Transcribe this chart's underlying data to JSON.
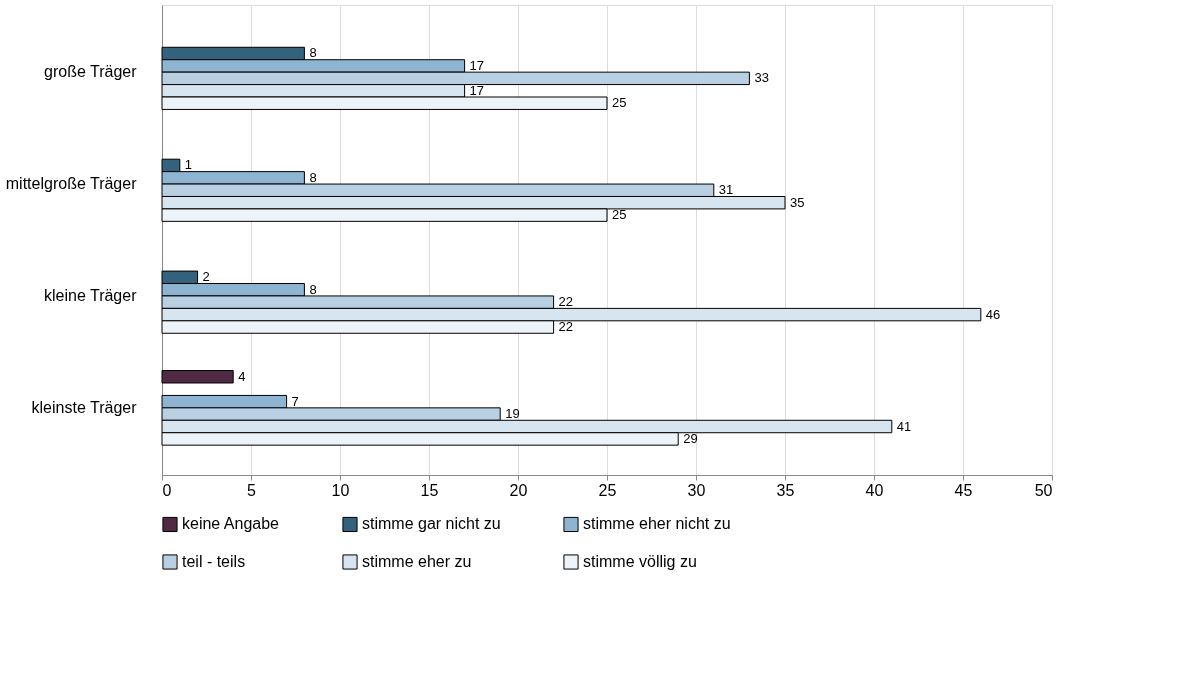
{
  "chart_data": {
    "type": "bar",
    "orientation": "horizontal",
    "categories": [
      "große Träger",
      "mittelgroße Träger",
      "kleine Träger",
      "kleinste Träger"
    ],
    "series": [
      {
        "name": "keine Angabe",
        "color": "#4f2a42",
        "values": [
          null,
          null,
          null,
          4
        ]
      },
      {
        "name": "stimme gar nicht zu",
        "color": "#34617c",
        "values": [
          8,
          1,
          2,
          null
        ]
      },
      {
        "name": "stimme eher nicht zu",
        "color": "#8db4d0",
        "values": [
          17,
          8,
          8,
          7
        ]
      },
      {
        "name": "teil - teils",
        "color": "#b8d0e2",
        "values": [
          33,
          31,
          22,
          19
        ]
      },
      {
        "name": "stimme eher zu",
        "color": "#d7e5f0",
        "values": [
          17,
          35,
          46,
          41
        ]
      },
      {
        "name": "stimme völlig zu",
        "color": "#ecf3f9",
        "values": [
          25,
          25,
          22,
          29
        ]
      }
    ],
    "xlim": [
      0,
      50
    ],
    "xticks": [
      0,
      5,
      10,
      15,
      20,
      25,
      30,
      35,
      40,
      45,
      50
    ],
    "grid": "x",
    "legend": "bottom",
    "data_labels": true
  }
}
